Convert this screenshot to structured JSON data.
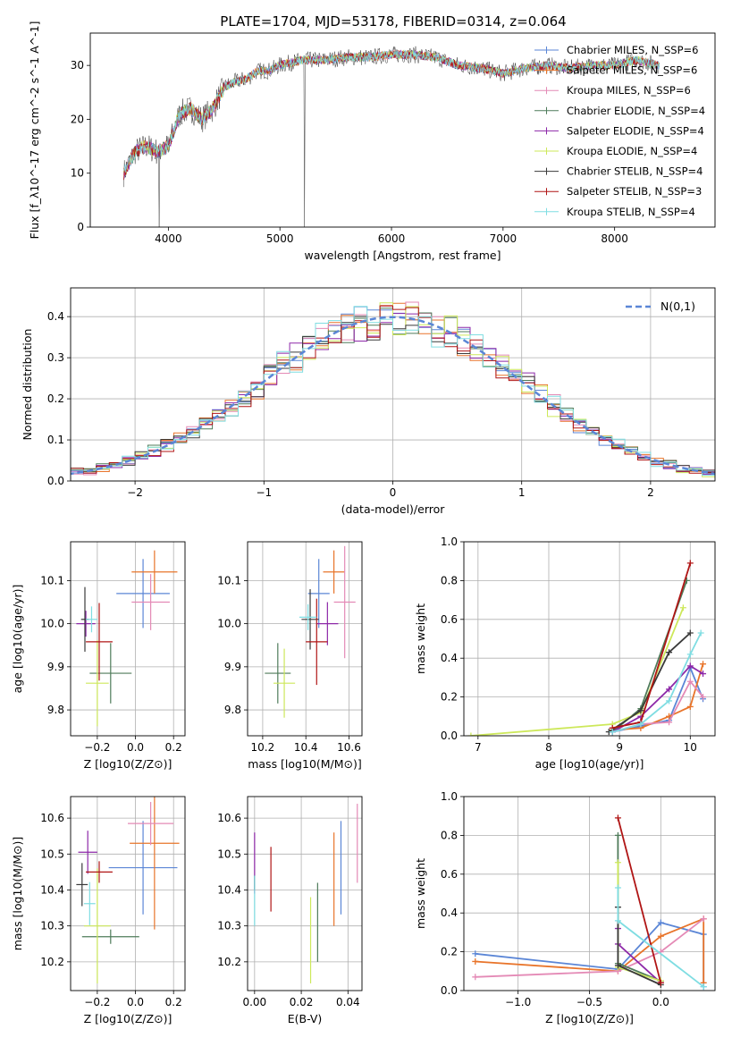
{
  "title": "PLATE=1704, MJD=53178, FIBERID=0314, z=0.064",
  "models": [
    {
      "name": "Chabrier MILES, N_SSP=6",
      "color": "#5b86d6"
    },
    {
      "name": "Salpeter MILES, N_SSP=6",
      "color": "#e8742a"
    },
    {
      "name": "Kroupa MILES, N_SSP=6",
      "color": "#e48ab6"
    },
    {
      "name": "Chabrier ELODIE, N_SSP=4",
      "color": "#4f7b5a"
    },
    {
      "name": "Salpeter ELODIE, N_SSP=4",
      "color": "#8d28a8"
    },
    {
      "name": "Kroupa ELODIE, N_SSP=4",
      "color": "#cde85a"
    },
    {
      "name": "Chabrier STELIB, N_SSP=4",
      "color": "#3a3a3a"
    },
    {
      "name": "Salpeter STELIB, N_SSP=3",
      "color": "#b01515"
    },
    {
      "name": "Kroupa STELIB, N_SSP=4",
      "color": "#7fdde2"
    }
  ],
  "chart_data": [
    {
      "id": "spectrum",
      "type": "line",
      "xlabel": "wavelength [Angstrom, rest frame]",
      "ylabel": "Flux [f_λ10^-17 erg cm^-2 s^-1 A^-1]",
      "xlim": [
        3300,
        8900
      ],
      "ylim": [
        0,
        36
      ],
      "xticks": [
        4000,
        5000,
        6000,
        7000,
        8000
      ],
      "yticks": [
        0,
        10,
        20,
        30
      ],
      "legend": "upper-right",
      "grid": false,
      "x": [
        3600,
        3700,
        3800,
        3900,
        4000,
        4100,
        4200,
        4300,
        4400,
        4500,
        4600,
        4700,
        4800,
        4900,
        5000,
        5200,
        5400,
        5600,
        5800,
        6000,
        6200,
        6400,
        6600,
        6800,
        7000,
        7200,
        7400,
        7600,
        7800,
        8000,
        8200,
        8400
      ],
      "y": [
        10,
        14,
        15,
        14,
        15,
        21,
        22,
        20,
        22,
        26,
        27,
        27.5,
        29,
        29,
        30,
        31,
        31,
        31.5,
        31.5,
        32,
        32,
        31.5,
        30,
        29.5,
        28.5,
        29.5,
        30,
        29.5,
        30,
        30,
        31,
        30
      ]
    },
    {
      "id": "residuals",
      "type": "histogram",
      "xlabel": "(data-model)/error",
      "ylabel": "Normed distribution",
      "xlim": [
        -2.5,
        2.5
      ],
      "ylim": [
        0,
        0.47
      ],
      "xticks": [
        -2,
        -1,
        0,
        1,
        2
      ],
      "yticks": [
        0,
        0.1,
        0.2,
        0.3,
        0.4
      ],
      "legend": "upper-right",
      "grid": true,
      "reference": {
        "name": "N(0,1)",
        "color": "#5b86d6"
      }
    },
    {
      "id": "age-vs-Z",
      "type": "scatter",
      "xlabel": "Z [log10(Z/Z⊙)]",
      "ylabel": "age [log10(age/yr)]",
      "xlim": [
        -0.34,
        0.26
      ],
      "ylim": [
        9.74,
        10.19
      ],
      "xticks": [
        -0.2,
        0.0,
        0.2
      ],
      "yticks": [
        9.8,
        9.9,
        10.0,
        10.1
      ],
      "grid": true,
      "points": [
        {
          "x": 0.04,
          "y": 10.07,
          "xerr": 0.14,
          "yerr": 0.08
        },
        {
          "x": 0.1,
          "y": 10.12,
          "xerr": 0.12,
          "yerr": 0.05
        },
        {
          "x": 0.08,
          "y": 10.05,
          "xerr": 0.1,
          "yerr": 0.065
        },
        {
          "x": -0.13,
          "y": 9.885,
          "xerr": 0.11,
          "yerr": 0.07
        },
        {
          "x": -0.26,
          "y": 10.0,
          "xerr": 0.05,
          "yerr": 0.03
        },
        {
          "x": -0.2,
          "y": 9.862,
          "xerr": 0.06,
          "yerr": 0.1
        },
        {
          "x": -0.265,
          "y": 10.01,
          "xerr": 0.02,
          "yerr": 0.075
        },
        {
          "x": -0.19,
          "y": 9.958,
          "xerr": 0.07,
          "yerr": 0.09
        },
        {
          "x": -0.23,
          "y": 10.01,
          "xerr": 0.03,
          "yerr": 0.03
        }
      ]
    },
    {
      "id": "age-vs-mass",
      "type": "scatter",
      "xlabel": "mass [log10(M/M⊙)]",
      "ylabel": "",
      "xlim": [
        10.13,
        10.66
      ],
      "ylim": [
        9.74,
        10.19
      ],
      "xticks": [
        10.2,
        10.4,
        10.6
      ],
      "yticks": [
        9.8,
        9.9,
        10.0,
        10.1
      ],
      "grid": true,
      "points": [
        {
          "x": 10.46,
          "y": 10.07,
          "xerr": 0.05,
          "yerr": 0.08
        },
        {
          "x": 10.53,
          "y": 10.12,
          "xerr": 0.05,
          "yerr": 0.05
        },
        {
          "x": 10.58,
          "y": 10.05,
          "xerr": 0.05,
          "yerr": 0.13
        },
        {
          "x": 10.27,
          "y": 9.885,
          "xerr": 0.06,
          "yerr": 0.07
        },
        {
          "x": 10.5,
          "y": 10.0,
          "xerr": 0.05,
          "yerr": 0.05
        },
        {
          "x": 10.3,
          "y": 9.862,
          "xerr": 0.05,
          "yerr": 0.08
        },
        {
          "x": 10.42,
          "y": 10.01,
          "xerr": 0.04,
          "yerr": 0.07
        },
        {
          "x": 10.45,
          "y": 9.958,
          "xerr": 0.05,
          "yerr": 0.1
        },
        {
          "x": 10.41,
          "y": 10.015,
          "xerr": 0.04,
          "yerr": 0.03
        }
      ]
    },
    {
      "id": "weight-vs-age",
      "type": "line",
      "xlabel": "age [log10(age/yr)]",
      "ylabel": "mass weight",
      "xlim": [
        6.8,
        10.35
      ],
      "ylim": [
        0,
        1.0
      ],
      "xticks": [
        7,
        8,
        9,
        10
      ],
      "yticks": [
        0,
        0.2,
        0.4,
        0.6,
        0.8,
        1.0
      ],
      "grid": true,
      "series": [
        {
          "x": [
            8.9,
            9.3,
            9.7,
            10.0,
            10.18
          ],
          "y": [
            0.02,
            0.05,
            0.08,
            0.35,
            0.19
          ]
        },
        {
          "x": [
            8.9,
            9.3,
            9.7,
            10.0,
            10.18
          ],
          "y": [
            0.03,
            0.04,
            0.1,
            0.15,
            0.37
          ]
        },
        {
          "x": [
            8.9,
            9.3,
            9.7,
            10.0,
            10.18
          ],
          "y": [
            0.02,
            0.06,
            0.07,
            0.28,
            0.2
          ]
        },
        {
          "x": [
            8.9,
            9.3,
            9.95
          ],
          "y": [
            0.02,
            0.14,
            0.8
          ]
        },
        {
          "x": [
            8.9,
            9.3,
            9.7,
            10.0,
            10.18
          ],
          "y": [
            0.02,
            0.1,
            0.24,
            0.36,
            0.32
          ]
        },
        {
          "x": [
            6.9,
            8.9,
            9.3,
            9.9
          ],
          "y": [
            0.0,
            0.06,
            0.12,
            0.66
          ]
        },
        {
          "x": [
            8.85,
            9.3,
            9.7,
            10.0
          ],
          "y": [
            0.02,
            0.13,
            0.43,
            0.53
          ]
        },
        {
          "x": [
            8.9,
            9.3,
            10.0
          ],
          "y": [
            0.04,
            0.07,
            0.89
          ]
        },
        {
          "x": [
            8.9,
            9.3,
            9.7,
            10.0,
            10.15
          ],
          "y": [
            0.02,
            0.06,
            0.18,
            0.42,
            0.53
          ]
        }
      ]
    },
    {
      "id": "mass-vs-Z",
      "type": "scatter",
      "xlabel": "Z [log10(Z/Z⊙)]",
      "ylabel": "mass [log10(M/M⊙)]",
      "xlim": [
        -0.34,
        0.26
      ],
      "ylim": [
        10.12,
        10.66
      ],
      "xticks": [
        -0.2,
        0.0,
        0.2
      ],
      "yticks": [
        10.2,
        10.3,
        10.4,
        10.5,
        10.6
      ],
      "grid": true,
      "points": [
        {
          "x": 0.04,
          "y": 10.462,
          "xerr": 0.18,
          "yerr": 0.13
        },
        {
          "x": 0.1,
          "y": 10.53,
          "xerr": 0.13,
          "yerr": 0.24
        },
        {
          "x": 0.08,
          "y": 10.585,
          "xerr": 0.12,
          "yerr": 0.06
        },
        {
          "x": -0.13,
          "y": 10.27,
          "xerr": 0.15,
          "yerr": 0.02
        },
        {
          "x": -0.25,
          "y": 10.505,
          "xerr": 0.05,
          "yerr": 0.06
        },
        {
          "x": -0.2,
          "y": 10.3,
          "xerr": 0.07,
          "yerr": 0.16
        },
        {
          "x": -0.28,
          "y": 10.415,
          "xerr": 0.03,
          "yerr": 0.06
        },
        {
          "x": -0.19,
          "y": 10.45,
          "xerr": 0.07,
          "yerr": 0.03
        },
        {
          "x": -0.24,
          "y": 10.362,
          "xerr": 0.03,
          "yerr": 0.06
        }
      ]
    },
    {
      "id": "mass-vs-EBV",
      "type": "scatter",
      "xlabel": "E(B-V)",
      "ylabel": "",
      "xlim": [
        -0.003,
        0.046
      ],
      "ylim": [
        10.12,
        10.66
      ],
      "xticks": [
        0.0,
        0.02,
        0.04
      ],
      "yticks": [
        10.2,
        10.3,
        10.4,
        10.5,
        10.6
      ],
      "grid": true,
      "points": [
        {
          "x": 0.037,
          "y": 10.462,
          "yerr": 0.13
        },
        {
          "x": 0.034,
          "y": 10.43,
          "yerr": 0.13
        },
        {
          "x": 0.044,
          "y": 10.53,
          "yerr": 0.11
        },
        {
          "x": 0.027,
          "y": 10.31,
          "yerr": 0.11
        },
        {
          "x": 0.0,
          "y": 10.475,
          "yerr": 0.085
        },
        {
          "x": 0.024,
          "y": 10.26,
          "yerr": 0.12
        },
        {
          "x": 0.0,
          "y": 10.42,
          "yerr": 0.02
        },
        {
          "x": 0.007,
          "y": 10.43,
          "yerr": 0.09
        },
        {
          "x": 0.0,
          "y": 10.37,
          "yerr": 0.07
        }
      ]
    },
    {
      "id": "weight-vs-Z",
      "type": "line",
      "xlabel": "Z [log10(Z/Z⊙)]",
      "ylabel": "mass weight",
      "xlim": [
        -1.38,
        0.38
      ],
      "ylim": [
        0,
        1.0
      ],
      "xticks": [
        -1.0,
        -0.5,
        0.0
      ],
      "yticks": [
        0,
        0.2,
        0.4,
        0.6,
        0.8,
        1.0
      ],
      "grid": true,
      "series": [
        {
          "x": [
            -1.3,
            -0.3,
            0.0,
            0.3,
            0.3
          ],
          "y": [
            0.19,
            0.11,
            0.35,
            0.29,
            0.02
          ]
        },
        {
          "x": [
            -1.3,
            -0.3,
            0.0,
            0.3,
            0.3
          ],
          "y": [
            0.15,
            0.1,
            0.28,
            0.37,
            0.04
          ]
        },
        {
          "x": [
            -1.3,
            -0.3,
            0.0,
            0.3
          ],
          "y": [
            0.07,
            0.1,
            0.2,
            0.37
          ]
        },
        {
          "x": [
            -0.3,
            -0.3,
            0.0
          ],
          "y": [
            0.8,
            0.14,
            0.05
          ]
        },
        {
          "x": [
            -0.3,
            -0.3,
            0.0
          ],
          "y": [
            0.32,
            0.24,
            0.04
          ]
        },
        {
          "x": [
            -0.3,
            -0.3,
            0.0
          ],
          "y": [
            0.66,
            0.12,
            0.05
          ]
        },
        {
          "x": [
            -0.3,
            -0.3,
            0.0
          ],
          "y": [
            0.43,
            0.13,
            0.03
          ]
        },
        {
          "x": [
            -0.3,
            0.0
          ],
          "y": [
            0.89,
            0.04
          ]
        },
        {
          "x": [
            -0.3,
            -0.3,
            0.3
          ],
          "y": [
            0.53,
            0.36,
            0.02
          ]
        }
      ]
    }
  ]
}
